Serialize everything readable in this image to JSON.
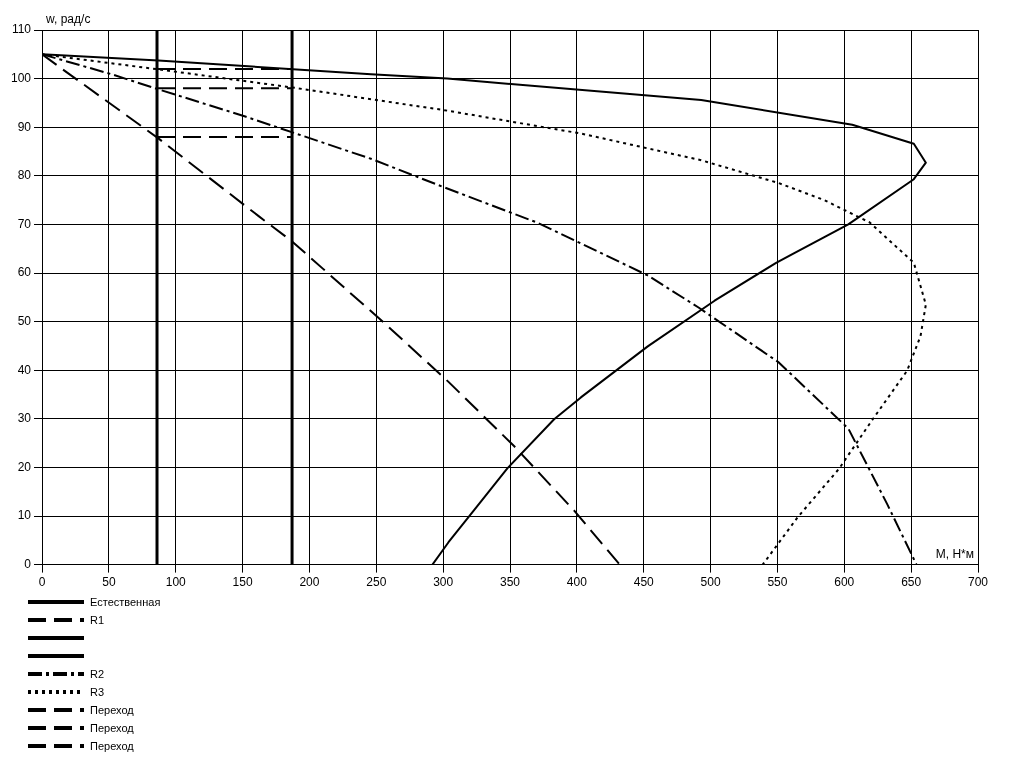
{
  "chart_data": {
    "type": "line",
    "xlabel": "M, Н*м",
    "ylabel": "w, рад/с",
    "xlim": [
      0,
      700
    ],
    "ylim": [
      0,
      110
    ],
    "xticks": [
      0,
      50,
      100,
      150,
      200,
      250,
      300,
      350,
      400,
      450,
      500,
      550,
      600,
      650,
      700
    ],
    "yticks": [
      0,
      10,
      20,
      30,
      40,
      50,
      60,
      70,
      80,
      90,
      100,
      110
    ],
    "grid": true,
    "legend": "bottom",
    "series": [
      {
        "name": "Естественная",
        "color": "#000000",
        "line_style": "solid",
        "x": [
          0,
          87,
          246,
          303,
          493,
          606,
          652,
          661,
          652,
          603,
          549,
          503,
          453,
          403,
          383,
          348,
          304,
          292
        ],
        "values": [
          105,
          103.7,
          100.9,
          100,
          95.6,
          90.5,
          86.6,
          82.7,
          79.3,
          70,
          62.1,
          54.3,
          44.9,
          34.4,
          29.9,
          19.8,
          4.6,
          0
        ]
      },
      {
        "name": "R1",
        "color": "#000000",
        "line_style": "dashed",
        "x": [
          0,
          17,
          87,
          162,
          187,
          210,
          256,
          304,
          353,
          398,
          432
        ],
        "values": [
          105,
          101.6,
          87.7,
          71.7,
          66.5,
          60.9,
          49.7,
          37.6,
          24.4,
          11.1,
          0
        ]
      },
      {
        "color": "#000000",
        "line_style": "solid",
        "x": [
          86,
          86
        ],
        "values": [
          0,
          110
        ]
      },
      {
        "color": "#000000",
        "line_style": "solid",
        "x": [
          187,
          187
        ],
        "values": [
          0,
          110
        ]
      },
      {
        "name": "R2",
        "color": "#000000",
        "line_style": "dashdot",
        "x": [
          0,
          52,
          87,
          152,
          246,
          301,
          371,
          453,
          491,
          551,
          603,
          632,
          654
        ],
        "values": [
          105,
          100.9,
          97.8,
          92.2,
          83.5,
          77.6,
          70.3,
          59.5,
          52.9,
          41.6,
          28,
          12.5,
          0
        ]
      },
      {
        "name": "R3",
        "color": "#000000",
        "line_style": "dotted",
        "x": [
          0,
          87,
          189,
          301,
          403,
          493,
          551,
          585,
          619,
          652,
          661,
          657,
          647,
          621,
          596,
          565,
          539
        ],
        "values": [
          105,
          101.9,
          98.1,
          93.5,
          88.7,
          83.2,
          78.5,
          75,
          70.4,
          62.1,
          53.5,
          47,
          39.9,
          29.8,
          19.7,
          9.7,
          0
        ]
      },
      {
        "name": "Переход",
        "color": "#000000",
        "line_style": "dashed",
        "x": [
          86,
          187
        ],
        "values": [
          102,
          102
        ]
      },
      {
        "name": "Переход",
        "color": "#000000",
        "line_style": "dashed",
        "x": [
          86,
          187
        ],
        "values": [
          98,
          98
        ]
      },
      {
        "name": "Переход",
        "color": "#000000",
        "line_style": "dashed",
        "x": [
          86,
          187
        ],
        "values": [
          88,
          88
        ]
      }
    ]
  }
}
